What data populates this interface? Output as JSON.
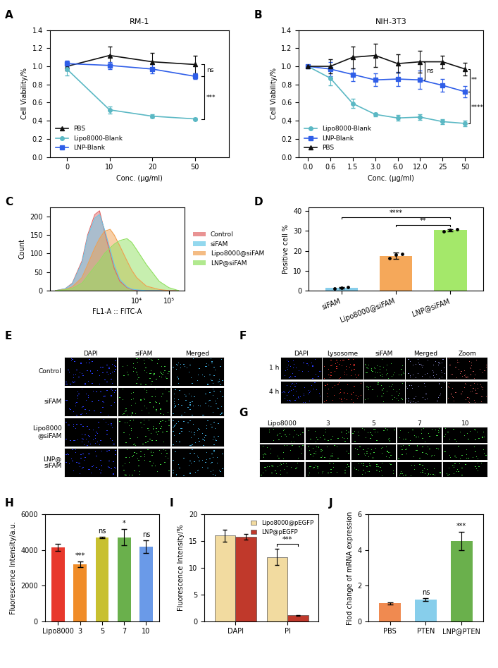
{
  "chart_data": [
    {
      "panel": "A",
      "type": "line",
      "title": "RM-1",
      "x_label": "Conc. (μg/ml)",
      "y_label": "Cell Viability/%",
      "categories": [
        "0",
        "10",
        "20",
        "50"
      ],
      "ylim": [
        0,
        1.4
      ],
      "yticks": [
        {
          "value": 0,
          "label": "0.0"
        },
        {
          "value": 0.2,
          "label": "0.2"
        },
        {
          "value": 0.4,
          "label": "0.4"
        },
        {
          "value": 0.6,
          "label": "0.6"
        },
        {
          "value": 0.8,
          "label": "0.8"
        },
        {
          "value": 1.0,
          "label": "1.0"
        },
        {
          "value": 1.2,
          "label": "1.2"
        },
        {
          "value": 1.4,
          "label": "1.4"
        }
      ],
      "legend": "lower left",
      "series": [
        {
          "name": "PBS",
          "color": "#111111",
          "marker": "triangle",
          "values": [
            1.0,
            1.12,
            1.05,
            1.02
          ],
          "errors": [
            0.05,
            0.1,
            0.1,
            0.1
          ]
        },
        {
          "name": "Lipo8000-Blank",
          "color": "#5bb8c4",
          "marker": "circle",
          "values": [
            0.97,
            0.52,
            0.45,
            0.42
          ],
          "errors": [
            0.07,
            0.04,
            0.02,
            0.01
          ]
        },
        {
          "name": "LNP-Blank",
          "color": "#2f5ee8",
          "marker": "square",
          "values": [
            1.03,
            1.01,
            0.97,
            0.89
          ],
          "errors": [
            0.03,
            0.04,
            0.05,
            0.03
          ]
        }
      ],
      "annotations": [
        {
          "text": "ns",
          "between": [
            "LNP-Blank",
            "PBS"
          ]
        },
        {
          "text": "***",
          "between": [
            "Lipo8000-Blank",
            "LNP-Blank"
          ]
        }
      ]
    },
    {
      "panel": "B",
      "type": "line",
      "title": "NIH-3T3",
      "x_label": "Conc. (μg/ml)",
      "y_label": "Cell Viability/%",
      "categories": [
        "0.0",
        "0.6",
        "1.5",
        "3.0",
        "6.0",
        "12.0",
        "25",
        "50"
      ],
      "ylim": [
        0,
        1.4
      ],
      "yticks": [
        {
          "value": 0,
          "label": "0.0"
        },
        {
          "value": 0.2,
          "label": "0.2"
        },
        {
          "value": 0.4,
          "label": "0.4"
        },
        {
          "value": 0.6,
          "label": "0.6"
        },
        {
          "value": 0.8,
          "label": "0.8"
        },
        {
          "value": 1.0,
          "label": "1.0"
        },
        {
          "value": 1.2,
          "label": "1.2"
        },
        {
          "value": 1.4,
          "label": "1.4"
        }
      ],
      "legend": "lower left",
      "series": [
        {
          "name": "Lipo8000-Blank",
          "color": "#5bb8c4",
          "marker": "circle",
          "values": [
            1.0,
            0.87,
            0.59,
            0.47,
            0.43,
            0.44,
            0.39,
            0.37
          ],
          "errors": [
            0,
            0.08,
            0.05,
            0.02,
            0.03,
            0.03,
            0.03,
            0.03
          ]
        },
        {
          "name": "LNP-Blank",
          "color": "#2f5ee8",
          "marker": "square",
          "values": [
            1.0,
            0.97,
            0.91,
            0.85,
            0.86,
            0.85,
            0.79,
            0.72
          ],
          "errors": [
            0,
            0.08,
            0.07,
            0.07,
            0.08,
            0.1,
            0.07,
            0.06
          ]
        },
        {
          "name": "PBS",
          "color": "#111111",
          "marker": "triangle",
          "values": [
            1.0,
            1.0,
            1.1,
            1.12,
            1.03,
            1.05,
            1.05,
            0.97
          ],
          "errors": [
            0,
            0.08,
            0.12,
            0.13,
            0.1,
            0.12,
            0.07,
            0.07
          ]
        }
      ],
      "annotations": [
        {
          "text": "ns",
          "between": [
            "LNP-Blank",
            "PBS"
          ],
          "at": "12.0"
        },
        {
          "text": "**",
          "between": [
            "LNP-Blank",
            "PBS"
          ]
        },
        {
          "text": "****",
          "between": [
            "Lipo8000-Blank",
            "LNP-Blank"
          ]
        }
      ]
    },
    {
      "panel": "C",
      "type": "area",
      "x_label": "FL1-A :: FITC-A",
      "y_label": "Count",
      "log": "x",
      "xlim": [
        20,
        300000
      ],
      "xticks": [
        {
          "value": 10000,
          "label": "10⁴"
        },
        {
          "value": 100000,
          "label": "10⁵"
        }
      ],
      "ylim": [
        0,
        225
      ],
      "yticks": [
        0,
        50,
        100,
        150,
        200
      ],
      "legend": "right",
      "x": [
        30,
        60,
        100,
        200,
        300,
        500,
        700,
        1000,
        1500,
        2000,
        3000,
        5000,
        7000,
        10000,
        20000,
        50000,
        100000,
        200000
      ],
      "series": [
        {
          "name": "Control",
          "color": "#e06666",
          "values": [
            0,
            5,
            20,
            80,
            150,
            205,
            215,
            160,
            100,
            60,
            25,
            8,
            3,
            1,
            0,
            0,
            0,
            0
          ]
        },
        {
          "name": "siFAM",
          "color": "#66c8e8",
          "values": [
            0,
            5,
            18,
            75,
            145,
            195,
            205,
            165,
            110,
            70,
            30,
            10,
            4,
            2,
            0,
            0,
            0,
            0
          ]
        },
        {
          "name": "Lipo8000@siFAM",
          "color": "#f0a050",
          "values": [
            0,
            3,
            10,
            35,
            70,
            115,
            140,
            160,
            165,
            150,
            120,
            80,
            55,
            35,
            12,
            3,
            0,
            0
          ]
        },
        {
          "name": "LNP@siFAM",
          "color": "#90e060",
          "values": [
            0,
            2,
            6,
            20,
            40,
            65,
            80,
            100,
            115,
            125,
            135,
            140,
            130,
            110,
            70,
            25,
            8,
            0
          ]
        }
      ]
    },
    {
      "panel": "D",
      "type": "bar",
      "y_label": "Positive cell %",
      "categories": [
        "siFAM",
        "Lipo8000@siFAM",
        "LNP@siFAM"
      ],
      "values": [
        1.5,
        17.5,
        30.4
      ],
      "errors": [
        0.3,
        1.5,
        0.6
      ],
      "points": [
        [
          1.2,
          1.5,
          1.8
        ],
        [
          16.2,
          18.0,
          18.3
        ],
        [
          29.8,
          30.5,
          31.0
        ]
      ],
      "colors": [
        "#87ceeb",
        "#f5a85a",
        "#a4e86a"
      ],
      "ylim": [
        0,
        42
      ],
      "yticks": [
        0,
        10,
        20,
        30,
        40
      ],
      "annotations": [
        {
          "text": "**",
          "between": [
            "Lipo8000@siFAM",
            "LNP@siFAM"
          ]
        },
        {
          "text": "****",
          "between": [
            "siFAM",
            "LNP@siFAM"
          ]
        }
      ]
    },
    {
      "panel": "E",
      "type": "image_grid",
      "columns": [
        "DAPI",
        "siFAM",
        "Merged"
      ],
      "rows": [
        "Control",
        "siFAM",
        "Lipo8000\n@siFAM",
        "LNP@\nsiFAM"
      ],
      "colors": [
        "#2a3cff",
        "#3ecf3e",
        "#3fa7d6"
      ]
    },
    {
      "panel": "F",
      "type": "image_grid",
      "columns": [
        "DAPI",
        "Lysosome",
        "siFAM",
        "Merged",
        "Zoom"
      ],
      "rows": [
        "1 h",
        "4 h"
      ],
      "colors": [
        "#2a3cff",
        "#e0302a",
        "#3ecf3e",
        "#8a8ad0",
        "#c05050"
      ]
    },
    {
      "panel": "G",
      "type": "image_grid",
      "columns": [
        "Lipo8000",
        "3",
        "5",
        "7",
        "10"
      ],
      "rows": [
        null,
        null,
        null
      ],
      "colors": [
        "#3ecf3e",
        "#3ecf3e",
        "#3ecf3e",
        "#3ecf3e",
        "#3ecf3e"
      ]
    },
    {
      "panel": "H",
      "type": "bar",
      "y_label": "Fluorescence Intensity/a.u.",
      "categories": [
        "Lipo8000",
        "3",
        "5",
        "7",
        "10"
      ],
      "values": [
        4150,
        3200,
        4700,
        4720,
        4180
      ],
      "errors": [
        200,
        150,
        30,
        450,
        350
      ],
      "colors": [
        "#e8382c",
        "#f08c28",
        "#c8c030",
        "#6ab04c",
        "#6a9ae8"
      ],
      "ylim": [
        0,
        6000
      ],
      "yticks": [
        0,
        2000,
        4000,
        6000
      ],
      "annotations": [
        {
          "text": "***",
          "at": "3"
        },
        {
          "text": "ns",
          "at": "5"
        },
        {
          "text": "*",
          "at": "7"
        },
        {
          "text": "ns",
          "at": "10"
        }
      ]
    },
    {
      "panel": "I",
      "type": "bar",
      "y_label": "Fluorescence Intensity/%",
      "categories": [
        "DAPI",
        "PI"
      ],
      "series": [
        {
          "name": "Lipo8000@pEGFP",
          "color": "#f2dba0",
          "values": [
            16.0,
            12.0
          ],
          "errors": [
            1.1,
            1.5
          ]
        },
        {
          "name": "LNP@pEGFP",
          "color": "#c0392b",
          "values": [
            15.8,
            1.1
          ],
          "errors": [
            0.5,
            0.1
          ]
        }
      ],
      "ylim": [
        0,
        20
      ],
      "yticks": [
        0,
        5,
        10,
        15,
        20
      ],
      "legend": "upper right",
      "annotations": [
        {
          "text": "***",
          "at": "PI",
          "between": [
            "Lipo8000@pEGFP",
            "LNP@pEGFP"
          ]
        }
      ]
    },
    {
      "panel": "J",
      "type": "bar",
      "y_label": "Flod change of mRNA expression",
      "categories": [
        "PBS",
        "PTEN",
        "LNP@PTEN"
      ],
      "values": [
        1.0,
        1.2,
        4.5
      ],
      "errors": [
        0.05,
        0.08,
        0.5
      ],
      "colors": [
        "#f08a50",
        "#87ceeb",
        "#6ab04c"
      ],
      "ylim": [
        0,
        6
      ],
      "yticks": [
        0,
        2,
        4,
        6
      ],
      "annotations": [
        {
          "text": "ns",
          "at": "PTEN"
        },
        {
          "text": "***",
          "at": "LNP@PTEN"
        }
      ]
    }
  ]
}
